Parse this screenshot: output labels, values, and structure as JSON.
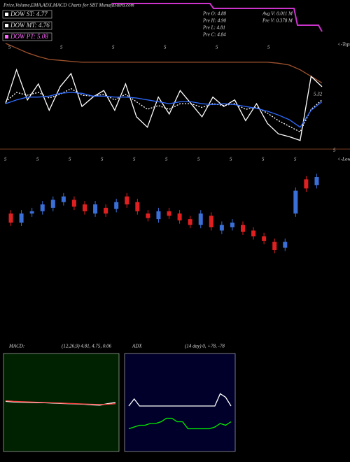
{
  "header": {
    "title": "Price,Volume,EMA,ADX,MACD Charts for SBT MunafaSutra.com",
    "dow_st": "DOW ST: 4.77",
    "dow_mt": "DOW MT: 4.76",
    "dow_pt": "DOW PT: 5.08",
    "pre_o": "Pre  O: 4.88",
    "pre_h": "Pre  H: 4.90",
    "pre_l": "Pre  L: 4.81",
    "pre_c": "Pre  C: 4.84",
    "avg_v": "Avg  V: 0.011  M",
    "pre_v": "Pre  V: 0.378  M"
  },
  "chart_data": [
    {
      "type": "line",
      "ylim": [
        4.4,
        5.5
      ],
      "annotations": [
        "5.32",
        "5",
        "<-Tops"
      ],
      "top_marks": [
        "5",
        "5",
        "5",
        "5",
        "5",
        "5"
      ],
      "series": [
        {
          "color": "#a0522d",
          "dashed": false,
          "values": [
            5.5,
            5.45,
            5.4,
            5.36,
            5.33,
            5.32,
            5.31,
            5.3,
            5.3,
            5.3,
            5.3,
            5.3,
            5.3,
            5.3,
            5.3,
            5.3,
            5.3,
            5.3,
            5.3,
            5.3,
            5.3,
            5.3,
            5.3,
            5.3,
            5.3,
            5.29,
            5.27,
            5.22,
            5.15,
            5.08
          ]
        },
        {
          "color": "#ffffff",
          "dashed": false,
          "values": [
            4.86,
            5.22,
            4.9,
            5.07,
            4.79,
            5.04,
            5.18,
            4.83,
            4.93,
            5.0,
            4.79,
            5.07,
            4.72,
            4.61,
            4.93,
            4.75,
            5.0,
            4.86,
            4.72,
            4.93,
            4.83,
            4.9,
            4.68,
            4.86,
            4.65,
            4.54,
            4.51,
            4.47,
            5.15,
            5.04
          ]
        },
        {
          "color": "#ffffff",
          "dashed": true,
          "values": [
            4.88,
            4.98,
            4.95,
            4.98,
            4.92,
            4.96,
            5.02,
            4.95,
            4.94,
            4.96,
            4.9,
            4.96,
            4.88,
            4.8,
            4.84,
            4.8,
            4.86,
            4.86,
            4.82,
            4.86,
            4.84,
            4.86,
            4.8,
            4.82,
            4.76,
            4.68,
            4.62,
            4.56,
            4.8,
            4.9
          ]
        },
        {
          "color": "#2f6bff",
          "dashed": false,
          "values": [
            4.86,
            4.9,
            4.93,
            4.93,
            4.94,
            4.97,
            4.98,
            4.97,
            4.94,
            4.94,
            4.93,
            4.93,
            4.92,
            4.9,
            4.88,
            4.86,
            4.88,
            4.88,
            4.86,
            4.85,
            4.86,
            4.85,
            4.83,
            4.81,
            4.78,
            4.74,
            4.69,
            4.61,
            4.79,
            4.88
          ]
        }
      ]
    },
    {
      "type": "candlestick",
      "ylim": [
        4.3,
        5.1
      ],
      "up_color": "#3a6fd8",
      "down_color": "#e02020",
      "annotations": [
        "<-Lows"
      ],
      "top_marks": [
        "5",
        "5",
        "5",
        "5",
        "5",
        "5",
        "5",
        "5",
        "5",
        "5"
      ],
      "open": [
        4.7,
        4.62,
        4.7,
        4.72,
        4.75,
        4.8,
        4.82,
        4.78,
        4.7,
        4.75,
        4.74,
        4.85,
        4.8,
        4.7,
        4.65,
        4.72,
        4.7,
        4.65,
        4.6,
        4.68,
        4.55,
        4.58,
        4.6,
        4.55,
        4.5,
        4.45,
        4.4,
        4.7,
        5.0,
        4.95
      ],
      "high": [
        4.73,
        4.73,
        4.75,
        4.81,
        4.85,
        4.88,
        4.85,
        4.81,
        4.81,
        4.78,
        4.83,
        4.88,
        4.83,
        4.73,
        4.75,
        4.75,
        4.73,
        4.68,
        4.73,
        4.71,
        4.63,
        4.65,
        4.63,
        4.58,
        4.53,
        4.48,
        4.48,
        4.93,
        5.03,
        5.05
      ],
      "low": [
        4.59,
        4.59,
        4.67,
        4.69,
        4.72,
        4.77,
        4.73,
        4.69,
        4.67,
        4.67,
        4.71,
        4.75,
        4.69,
        4.63,
        4.62,
        4.65,
        4.61,
        4.57,
        4.57,
        4.55,
        4.52,
        4.55,
        4.51,
        4.47,
        4.43,
        4.35,
        4.37,
        4.67,
        4.89,
        4.92
      ],
      "close": [
        4.62,
        4.7,
        4.72,
        4.78,
        4.82,
        4.85,
        4.76,
        4.72,
        4.78,
        4.7,
        4.8,
        4.78,
        4.72,
        4.66,
        4.72,
        4.68,
        4.64,
        4.6,
        4.7,
        4.58,
        4.6,
        4.62,
        4.54,
        4.5,
        4.46,
        4.38,
        4.45,
        4.9,
        4.92,
        5.02
      ]
    },
    {
      "type": "line",
      "title": "MACD:",
      "subtitle": "(12,26,9) 4.81, 4.75, 0.06",
      "ylim": [
        -1.5,
        1.5
      ],
      "series": [
        {
          "color": "#ffffff",
          "dashed": false,
          "values": [
            0.1,
            0.08,
            0.07,
            0.06,
            0.05,
            0.05,
            0.04,
            0.03,
            0.02,
            0.01,
            0.0,
            -0.02,
            -0.03,
            0.02,
            0.06
          ]
        },
        {
          "color": "#ff4444",
          "dashed": false,
          "values": [
            0.12,
            0.1,
            0.09,
            0.08,
            0.07,
            0.06,
            0.05,
            0.04,
            0.03,
            0.02,
            0.01,
            0.0,
            -0.01,
            0.0,
            0.02
          ]
        }
      ]
    },
    {
      "type": "line",
      "title": "ADX",
      "subtitle": "(14 day) 0, +78, -78",
      "ylim": [
        0,
        100
      ],
      "series": [
        {
          "color": "#ffffff",
          "dashed": false,
          "values": [
            48,
            56,
            48,
            48,
            48,
            48,
            48,
            48,
            48,
            48,
            48,
            48,
            48,
            48,
            48,
            48,
            48,
            62,
            58,
            48
          ]
        },
        {
          "color": "#00ee00",
          "dashed": false,
          "values": [
            22,
            24,
            26,
            26,
            28,
            28,
            30,
            34,
            34,
            30,
            30,
            22,
            22,
            22,
            22,
            22,
            24,
            28,
            26,
            30
          ]
        }
      ]
    }
  ]
}
